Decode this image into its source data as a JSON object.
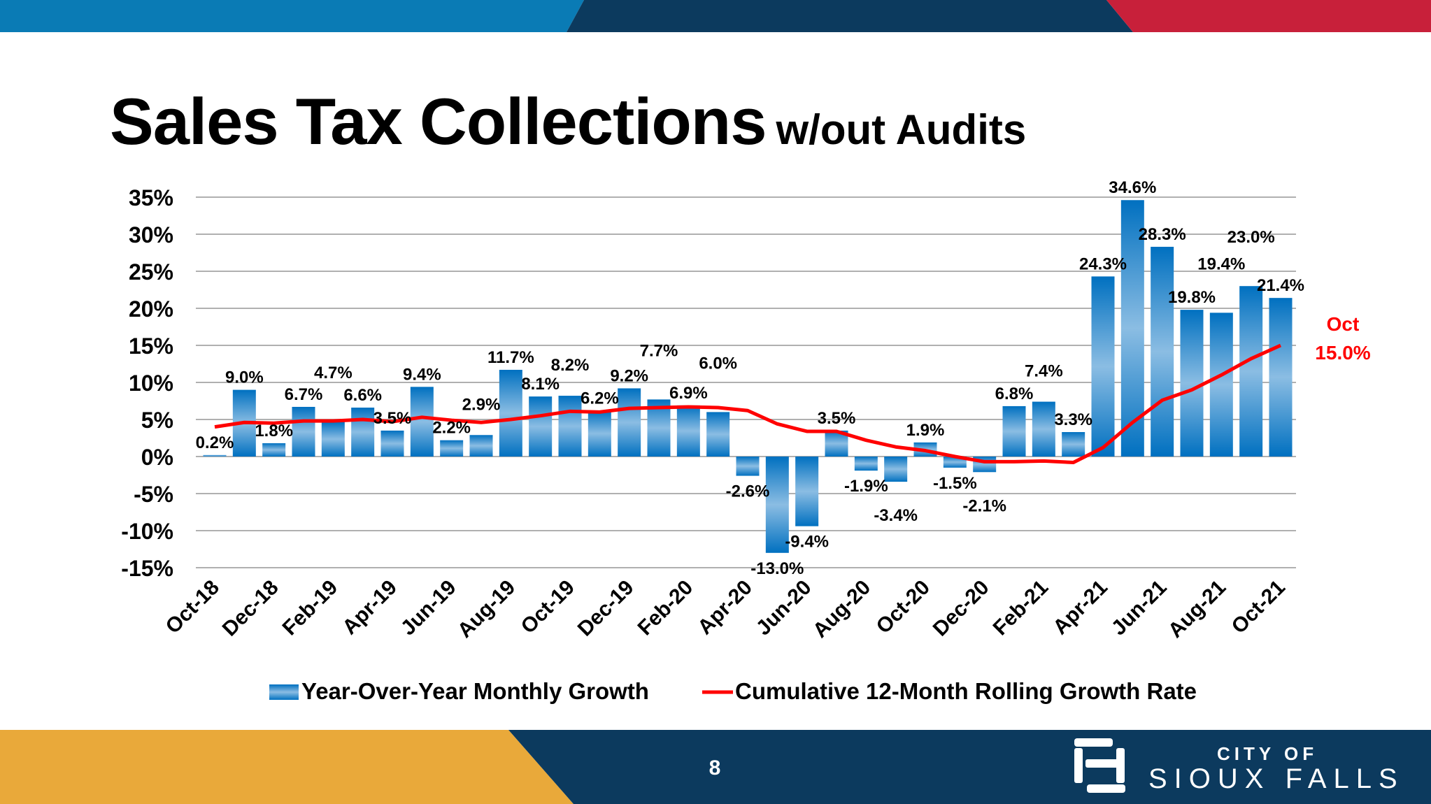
{
  "title": {
    "main": "Sales Tax Collections",
    "sub": "w/out Audits"
  },
  "page_number": "8",
  "logo": {
    "line1": "CITY OF",
    "line2": "SIOUX FALLS"
  },
  "colors": {
    "bar": "#0070c0",
    "bar_light": "#8bbde3",
    "line": "#ff0000",
    "band_blue": "#0a7bb5",
    "band_navy": "#0c3a5e",
    "band_red": "#c8203a",
    "band_yellow": "#e9a93a"
  },
  "chart_data": {
    "type": "bar",
    "title": "",
    "xlabel": "",
    "ylabel": "",
    "ylim": [
      -15,
      35
    ],
    "yticks": [
      "35%",
      "30%",
      "25%",
      "20%",
      "15%",
      "10%",
      "5%",
      "0%",
      "-5%",
      "-10%",
      "-15%"
    ],
    "ytick_values": [
      35,
      30,
      25,
      20,
      15,
      10,
      5,
      0,
      -5,
      -10,
      -15
    ],
    "grid": true,
    "legend_position": "bottom",
    "categories": [
      "Oct-18",
      "Nov-18",
      "Dec-18",
      "Jan-19",
      "Feb-19",
      "Mar-19",
      "Apr-19",
      "May-19",
      "Jun-19",
      "Jul-19",
      "Aug-19",
      "Sep-19",
      "Oct-19",
      "Nov-19",
      "Dec-19",
      "Jan-20",
      "Feb-20",
      "Mar-20",
      "Apr-20",
      "May-20",
      "Jun-20",
      "Jul-20",
      "Aug-20",
      "Sep-20",
      "Oct-20",
      "Nov-20",
      "Dec-20",
      "Jan-21",
      "Feb-21",
      "Mar-21",
      "Apr-21",
      "May-21",
      "Jun-21",
      "Jul-21",
      "Aug-21",
      "Sep-21",
      "Oct-21"
    ],
    "xtick_labels": [
      "Oct-18",
      "Dec-18",
      "Feb-19",
      "Apr-19",
      "Jun-19",
      "Aug-19",
      "Oct-19",
      "Dec-19",
      "Feb-20",
      "Apr-20",
      "Jun-20",
      "Aug-20",
      "Oct-20",
      "Dec-20",
      "Feb-21",
      "Apr-21",
      "Jun-21",
      "Aug-21",
      "Oct-21"
    ],
    "series": [
      {
        "name": "Year-Over-Year Monthly Growth",
        "type": "bar",
        "values": [
          0.2,
          9.0,
          1.8,
          6.7,
          4.7,
          6.6,
          3.5,
          9.4,
          2.2,
          2.9,
          11.7,
          8.1,
          8.2,
          6.2,
          9.2,
          7.7,
          6.9,
          6.0,
          -2.6,
          -13.0,
          -9.4,
          3.5,
          -1.9,
          -3.4,
          1.9,
          -1.5,
          -2.1,
          6.8,
          7.4,
          3.3,
          24.3,
          34.6,
          28.3,
          19.8,
          19.4,
          23.0,
          21.4
        ],
        "labels": [
          "0.2%",
          "9.0%",
          "1.8%",
          "6.7%",
          "4.7%",
          "6.6%",
          "3.5%",
          "9.4%",
          "2.2%",
          "2.9%",
          "11.7%",
          "8.1%",
          "8.2%",
          "6.2%",
          "9.2%",
          "7.7%",
          "6.9%",
          "6.0%",
          "-2.6%",
          "-13.0%",
          "-9.4%",
          "3.5%",
          "-1.9%",
          "-3.4%",
          "1.9%",
          "-1.5%",
          "-2.1%",
          "6.8%",
          "7.4%",
          "3.3%",
          "24.3%",
          "34.6%",
          "28.3%",
          "19.8%",
          "19.4%",
          "23.0%",
          "21.4%"
        ]
      },
      {
        "name": "Cumulative 12-Month Rolling Growth Rate",
        "type": "line",
        "values": [
          4.0,
          4.6,
          4.5,
          4.8,
          4.8,
          5.0,
          4.7,
          5.3,
          4.9,
          4.6,
          5.0,
          5.5,
          6.1,
          6.0,
          6.5,
          6.6,
          6.7,
          6.6,
          6.2,
          4.4,
          3.4,
          3.4,
          2.2,
          1.3,
          0.8,
          0.0,
          -0.7,
          -0.7,
          -0.6,
          -0.8,
          1.2,
          4.6,
          7.6,
          9.0,
          11.0,
          13.2,
          15.0
        ]
      }
    ],
    "annotations": [
      {
        "text": "Oct",
        "series": "Cumulative 12-Month Rolling Growth Rate"
      },
      {
        "text": "15.0%",
        "series": "Cumulative 12-Month Rolling Growth Rate"
      }
    ]
  }
}
